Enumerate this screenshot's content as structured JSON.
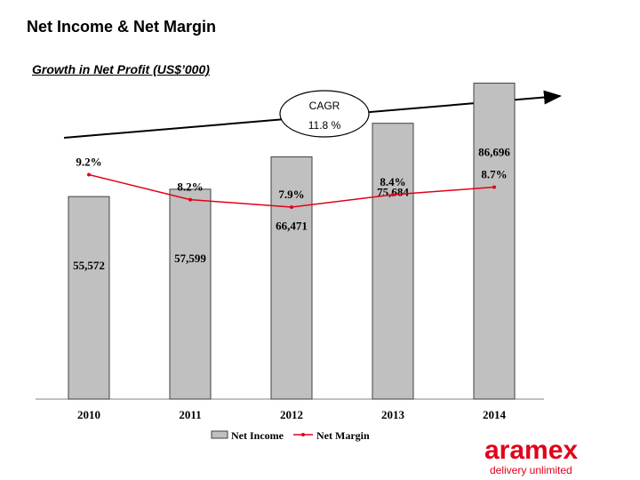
{
  "header": {
    "title": "Net Income & Net Margin",
    "subtitle": "Growth in Net Profit (US$’000)"
  },
  "cagr": {
    "label": "CAGR",
    "value": "11.8 %"
  },
  "brand": {
    "name": "aramex",
    "tagline": "delivery unlimited",
    "color": "#e2001a"
  },
  "colors": {
    "bar_fill": "#c0c0c0",
    "bar_stroke": "#404040",
    "margin_line": "#e2001a",
    "trend_arrow": "#000000"
  },
  "chart_data": {
    "type": "bar",
    "categories": [
      "2010",
      "2011",
      "2012",
      "2013",
      "2014"
    ],
    "series": [
      {
        "name": "Net Income",
        "type": "bar",
        "values": [
          55572,
          57599,
          66471,
          75684,
          86696
        ],
        "labels": [
          "55,572",
          "57,599",
          "66,471",
          "75,684",
          "86,696"
        ]
      },
      {
        "name": "Net Margin",
        "type": "line",
        "values": [
          9.2,
          8.2,
          7.9,
          8.4,
          8.7
        ],
        "labels": [
          "9.2%",
          "8.2%",
          "7.9%",
          "8.4%",
          "8.7%"
        ]
      }
    ],
    "legend": "bottom"
  }
}
